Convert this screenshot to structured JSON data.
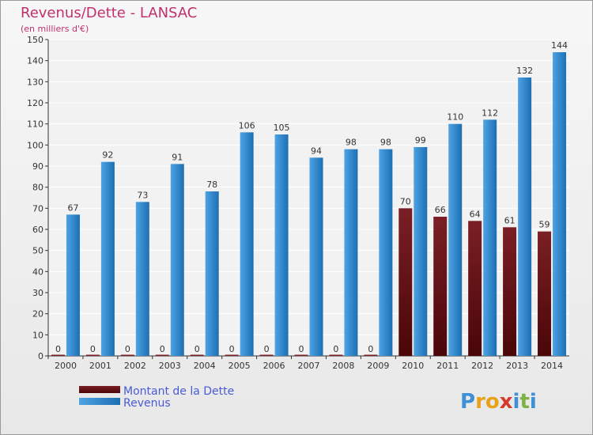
{
  "colors": {
    "background": "#ffffff",
    "plot_background": "#f2f2f2",
    "frame": "#333333",
    "grid": "#ffffff",
    "title": "#c0306a",
    "subtitle": "#c0306a",
    "tick_label": "#333333",
    "legend_text": "#4a5bd6",
    "dette_fill": "#7a1f25",
    "dette_dark": "#4a0608",
    "revenus_fill": "#4da3e3",
    "revenus_dark": "#1d6fb3"
  },
  "chart_data": {
    "type": "bar",
    "title": "Revenus/Dette - LANSAC",
    "subtitle": "(en milliers d'€)",
    "categories": [
      "2000",
      "2001",
      "2002",
      "2003",
      "2004",
      "2005",
      "2006",
      "2007",
      "2008",
      "2009",
      "2010",
      "2011",
      "2012",
      "2013",
      "2014"
    ],
    "series": [
      {
        "name": "Montant de la Dette",
        "values": [
          0,
          0,
          0,
          0,
          0,
          0,
          0,
          0,
          0,
          0,
          70,
          66,
          64,
          61,
          59
        ]
      },
      {
        "name": "Revenus",
        "values": [
          67,
          92,
          73,
          91,
          78,
          106,
          105,
          94,
          98,
          98,
          99,
          110,
          112,
          132,
          144
        ]
      }
    ],
    "ylim": [
      0,
      150
    ],
    "ytick_step": 10,
    "grid": true,
    "legend_position": "bottom-left"
  },
  "logo": {
    "text": "Proxiti",
    "letters": [
      "P",
      "r",
      "o",
      "x",
      "i",
      "t",
      "i"
    ],
    "letter_colors": [
      "#3d8fd6",
      "#e8a21a",
      "#e8a21a",
      "#d63a2c",
      "#3d8fd6",
      "#7cb342",
      "#3d8fd6"
    ]
  }
}
